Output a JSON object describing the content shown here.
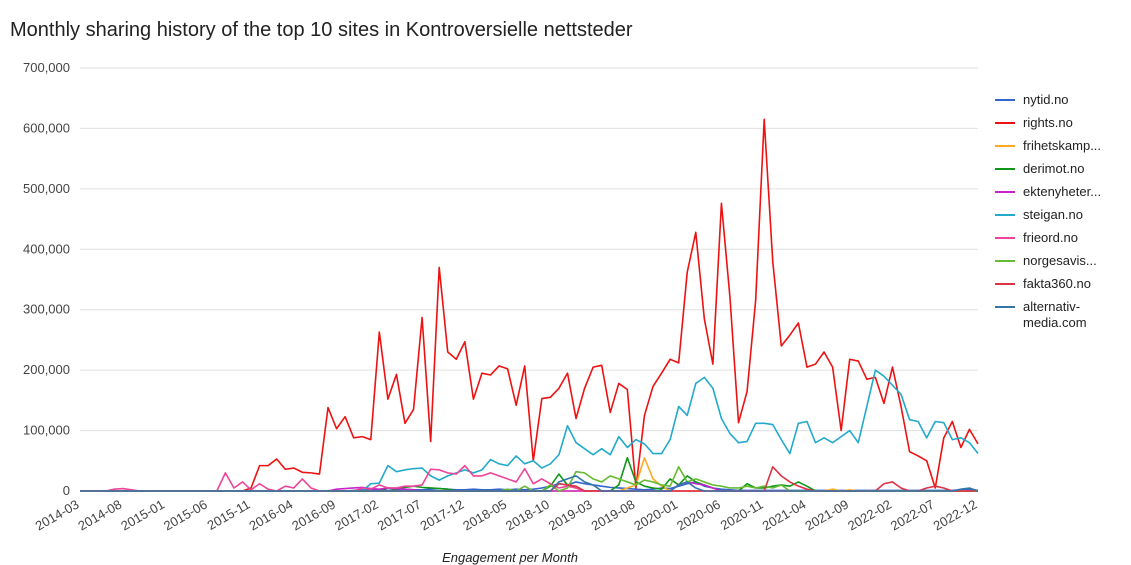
{
  "chart_data": {
    "type": "line",
    "title": "Monthly sharing history of the top 10 sites in Kontroversielle nettsteder",
    "x_label": "Engagement per Month",
    "categories": [
      "2014-03",
      null,
      null,
      null,
      null,
      "2014-08",
      null,
      null,
      null,
      null,
      "2015-01",
      null,
      null,
      null,
      null,
      "2015-06",
      null,
      null,
      null,
      null,
      "2015-11",
      null,
      null,
      null,
      null,
      "2016-04",
      null,
      null,
      null,
      null,
      "2016-09",
      null,
      null,
      null,
      null,
      "2017-02",
      null,
      null,
      null,
      null,
      "2017-07",
      null,
      null,
      null,
      null,
      "2017-12",
      null,
      null,
      null,
      null,
      "2018-05",
      null,
      null,
      null,
      null,
      "2018-10",
      null,
      null,
      null,
      null,
      "2019-03",
      null,
      null,
      null,
      null,
      "2019-08",
      null,
      null,
      null,
      null,
      "2020-01",
      null,
      null,
      null,
      null,
      "2020-06",
      null,
      null,
      null,
      null,
      "2020-11",
      null,
      null,
      null,
      null,
      "2021-04",
      null,
      null,
      null,
      null,
      "2021-09",
      null,
      null,
      null,
      null,
      "2022-02",
      null,
      null,
      null,
      null,
      "2022-07",
      null,
      null,
      null,
      null,
      "2022-12"
    ],
    "ylim": [
      0,
      700000
    ],
    "yticks": [
      0,
      {
        "value": 100000,
        "label": "100,000"
      },
      {
        "value": 200000,
        "label": "200,000"
      },
      {
        "value": 300000,
        "label": "300,000"
      },
      {
        "value": 400000,
        "label": "400,000"
      },
      {
        "value": 500000,
        "label": "500,000"
      },
      {
        "value": 600000,
        "label": "600,000"
      },
      {
        "value": 700000,
        "label": "700,000"
      }
    ],
    "grid": true,
    "legend": "right",
    "series": [
      {
        "name": "nytid.no",
        "color": "#3366cc",
        "values": [
          0,
          0,
          0,
          0,
          0,
          0,
          0,
          0,
          0,
          0,
          0,
          0,
          0,
          0,
          0,
          0,
          0,
          0,
          0,
          0,
          0,
          0,
          0,
          0,
          0,
          0,
          0,
          0,
          0,
          0,
          0,
          0,
          1000,
          2000,
          1000,
          2000,
          1000,
          2000,
          3000,
          2000,
          2000,
          3000,
          4000,
          3000,
          2000,
          2000,
          3000,
          2000,
          2000,
          3000,
          2000,
          3000,
          2000,
          3000,
          5000,
          8000,
          12000,
          10000,
          15000,
          12000,
          10000,
          8000,
          6000,
          5000,
          4000,
          3000,
          2000,
          3000,
          5000,
          4000,
          8000,
          12000,
          15000,
          8000,
          5000,
          3000,
          2000,
          1000,
          1000,
          1000,
          1000,
          1000,
          1000,
          1000,
          1000,
          1000,
          1000,
          1000,
          1000,
          1000,
          1000,
          1000,
          1000,
          1000,
          1000,
          1000,
          1000,
          1000,
          1000,
          1000,
          1000,
          1000,
          1000,
          2000,
          3000,
          1000
        ]
      },
      {
        "name": "rights.no",
        "color": "#ee1111",
        "values": [
          0,
          0,
          0,
          0,
          0,
          0,
          0,
          0,
          0,
          0,
          0,
          0,
          0,
          0,
          0,
          0,
          0,
          0,
          0,
          0,
          5000,
          42000,
          42000,
          53000,
          36000,
          38000,
          31000,
          30000,
          28000,
          138000,
          103000,
          123000,
          88000,
          90000,
          85000,
          263000,
          152000,
          193000,
          112000,
          135000,
          287000,
          82000,
          370000,
          230000,
          218000,
          247000,
          152000,
          195000,
          192000,
          207000,
          202000,
          142000,
          207000,
          50000,
          153000,
          155000,
          170000,
          195000,
          120000,
          170000,
          205000,
          208000,
          130000,
          178000,
          168000,
          5000,
          125000,
          173000,
          195000,
          218000,
          212000,
          362000,
          428000,
          285000,
          210000,
          476000,
          320000,
          113000,
          165000,
          315000,
          615000,
          380000,
          240000,
          258000,
          278000,
          205000,
          210000,
          230000,
          205000,
          100000,
          218000,
          215000,
          185000,
          188000,
          145000,
          205000,
          140000,
          65000,
          58000,
          50000,
          5000,
          88000,
          115000,
          72000,
          102000,
          78000
        ]
      },
      {
        "name": "frihetskamp...",
        "color": "#ffaa22",
        "values": [
          0,
          0,
          0,
          0,
          0,
          0,
          0,
          0,
          0,
          0,
          0,
          0,
          0,
          0,
          0,
          0,
          0,
          0,
          0,
          0,
          0,
          0,
          0,
          0,
          0,
          0,
          0,
          0,
          0,
          0,
          0,
          0,
          0,
          0,
          0,
          0,
          0,
          0,
          0,
          0,
          0,
          0,
          0,
          0,
          0,
          0,
          0,
          0,
          0,
          0,
          0,
          0,
          0,
          0,
          0,
          0,
          0,
          0,
          0,
          0,
          0,
          0,
          0,
          0,
          5000,
          10000,
          55000,
          20000,
          8000,
          0,
          0,
          0,
          0,
          0,
          0,
          0,
          0,
          0,
          0,
          0,
          0,
          0,
          0,
          0,
          0,
          0,
          0,
          0,
          3000,
          0,
          2000,
          0,
          0,
          0,
          0,
          0,
          0,
          0,
          0,
          0,
          0,
          0,
          0,
          0,
          0,
          0
        ]
      },
      {
        "name": "derimot.no",
        "color": "#109618",
        "values": [
          0,
          0,
          0,
          0,
          0,
          0,
          0,
          0,
          0,
          0,
          0,
          0,
          0,
          0,
          0,
          0,
          0,
          0,
          0,
          0,
          0,
          0,
          0,
          0,
          0,
          0,
          0,
          0,
          0,
          0,
          0,
          0,
          0,
          0,
          0,
          0,
          5000,
          3000,
          6000,
          8000,
          6000,
          5000,
          4000,
          3000,
          0,
          0,
          0,
          0,
          0,
          0,
          0,
          0,
          0,
          0,
          0,
          8000,
          28000,
          10000,
          5000,
          0,
          0,
          0,
          0,
          10000,
          55000,
          15000,
          8000,
          5000,
          3000,
          20000,
          10000,
          25000,
          15000,
          10000,
          5000,
          0,
          0,
          0,
          12000,
          5000,
          5000,
          8000,
          10000,
          8000,
          15000,
          8000,
          0,
          0,
          0,
          0,
          0,
          0,
          0,
          0,
          0,
          0,
          0,
          0,
          0,
          0,
          0,
          0,
          0,
          0,
          0,
          0
        ]
      },
      {
        "name": "ektenyheter...",
        "color": "#cc22cc",
        "values": [
          0,
          0,
          0,
          0,
          0,
          0,
          0,
          0,
          0,
          0,
          0,
          0,
          0,
          0,
          0,
          0,
          0,
          0,
          0,
          0,
          0,
          0,
          0,
          0,
          0,
          0,
          0,
          0,
          0,
          0,
          3000,
          4000,
          5000,
          6000,
          4000,
          3000,
          5000,
          4000,
          3000,
          2000,
          0,
          0,
          0,
          0,
          0,
          0,
          0,
          0,
          0,
          0,
          0,
          0,
          0,
          0,
          0,
          0,
          0,
          0,
          0,
          0,
          0,
          0,
          0,
          0,
          0,
          0,
          0,
          0,
          0,
          0,
          10000,
          15000,
          12000,
          10000,
          5000,
          0,
          0,
          0,
          0,
          0,
          0,
          0,
          0,
          0,
          0,
          0,
          0,
          0,
          0,
          0,
          0,
          0,
          0,
          0,
          0,
          0,
          0,
          0,
          0,
          0,
          0,
          0,
          0,
          0,
          0,
          0
        ]
      },
      {
        "name": "steigan.no",
        "color": "#22aacc",
        "values": [
          0,
          0,
          0,
          0,
          0,
          0,
          0,
          0,
          0,
          0,
          0,
          0,
          0,
          0,
          0,
          0,
          0,
          0,
          0,
          0,
          0,
          0,
          0,
          0,
          0,
          0,
          0,
          0,
          0,
          0,
          0,
          0,
          0,
          0,
          12000,
          13000,
          42000,
          32000,
          35000,
          37000,
          38000,
          25000,
          18000,
          25000,
          30000,
          35000,
          30000,
          35000,
          52000,
          45000,
          42000,
          58000,
          45000,
          50000,
          38000,
          45000,
          60000,
          108000,
          80000,
          70000,
          60000,
          70000,
          60000,
          90000,
          72000,
          85000,
          78000,
          62000,
          62000,
          85000,
          140000,
          125000,
          178000,
          188000,
          170000,
          120000,
          95000,
          80000,
          82000,
          112000,
          112000,
          110000,
          85000,
          62000,
          112000,
          115000,
          80000,
          88000,
          80000,
          90000,
          100000,
          80000,
          140000,
          200000,
          190000,
          175000,
          160000,
          118000,
          115000,
          88000,
          115000,
          113000,
          85000,
          88000,
          80000,
          62000
        ]
      },
      {
        "name": "frieord.no",
        "color": "#ee4499",
        "values": [
          0,
          0,
          0,
          0,
          3000,
          4000,
          2000,
          0,
          0,
          0,
          0,
          0,
          0,
          0,
          0,
          0,
          0,
          30000,
          5000,
          15000,
          2000,
          12000,
          3000,
          0,
          8000,
          5000,
          20000,
          5000,
          0,
          0,
          0,
          0,
          0,
          5000,
          3000,
          10000,
          5000,
          5000,
          8000,
          8000,
          10000,
          36000,
          35000,
          30000,
          28000,
          42000,
          25000,
          25000,
          30000,
          25000,
          20000,
          15000,
          37000,
          12000,
          20000,
          12000,
          5000,
          8000,
          5000,
          0,
          0,
          0,
          0,
          0,
          0,
          0,
          0,
          0,
          0,
          0,
          0,
          0,
          0,
          0,
          0,
          0,
          0,
          0,
          0,
          0,
          0,
          0,
          0,
          0,
          0,
          0,
          0,
          0,
          0,
          0,
          0,
          0,
          0,
          0,
          0,
          0,
          0,
          0,
          0,
          0,
          0,
          0,
          0,
          0,
          0,
          0
        ]
      },
      {
        "name": "norgesavis...",
        "color": "#66bb33",
        "values": [
          0,
          0,
          0,
          0,
          0,
          0,
          0,
          0,
          0,
          0,
          0,
          0,
          0,
          0,
          0,
          0,
          0,
          0,
          0,
          0,
          0,
          0,
          0,
          0,
          0,
          0,
          0,
          0,
          0,
          0,
          0,
          0,
          0,
          0,
          0,
          0,
          0,
          0,
          0,
          0,
          0,
          0,
          0,
          0,
          0,
          0,
          0,
          0,
          0,
          0,
          3000,
          0,
          8000,
          0,
          0,
          10000,
          0,
          5000,
          32000,
          30000,
          20000,
          15000,
          25000,
          20000,
          15000,
          10000,
          18000,
          15000,
          10000,
          8000,
          40000,
          15000,
          20000,
          15000,
          10000,
          8000,
          5000,
          5000,
          8000,
          5000,
          8000,
          5000,
          10000,
          0,
          0,
          0,
          0,
          0,
          0,
          0,
          0,
          0,
          0,
          0,
          0,
          0,
          0,
          0,
          0,
          0,
          0,
          0,
          0,
          0,
          0,
          0
        ]
      },
      {
        "name": "fakta360.no",
        "color": "#dd3344",
        "values": [
          0,
          0,
          0,
          0,
          0,
          0,
          0,
          0,
          0,
          0,
          0,
          0,
          0,
          0,
          0,
          0,
          0,
          0,
          0,
          0,
          0,
          0,
          0,
          0,
          0,
          0,
          0,
          0,
          0,
          0,
          0,
          0,
          0,
          0,
          0,
          0,
          0,
          0,
          0,
          0,
          0,
          0,
          0,
          0,
          0,
          0,
          0,
          0,
          0,
          0,
          0,
          0,
          0,
          0,
          0,
          0,
          12000,
          10000,
          8000,
          0,
          0,
          0,
          0,
          0,
          0,
          0,
          0,
          0,
          0,
          0,
          0,
          0,
          0,
          0,
          0,
          0,
          0,
          0,
          0,
          0,
          0,
          40000,
          25000,
          15000,
          8000,
          3000,
          0,
          0,
          0,
          0,
          0,
          0,
          0,
          0,
          12000,
          15000,
          5000,
          0,
          0,
          5000,
          8000,
          5000,
          0,
          0,
          0,
          0
        ]
      },
      {
        "name": "alternativ-media.com",
        "color": "#3377aa",
        "values": [
          0,
          0,
          0,
          0,
          0,
          0,
          0,
          0,
          0,
          0,
          0,
          0,
          0,
          0,
          0,
          0,
          0,
          0,
          0,
          0,
          0,
          0,
          0,
          0,
          0,
          0,
          0,
          0,
          0,
          0,
          0,
          0,
          0,
          0,
          0,
          0,
          0,
          0,
          0,
          0,
          0,
          0,
          0,
          0,
          0,
          0,
          0,
          0,
          0,
          0,
          0,
          0,
          0,
          0,
          0,
          0,
          15000,
          20000,
          25000,
          15000,
          10000,
          0,
          0,
          0,
          0,
          0,
          0,
          0,
          0,
          0,
          10000,
          15000,
          5000,
          0,
          0,
          0,
          0,
          0,
          0,
          0,
          0,
          0,
          0,
          0,
          0,
          0,
          0,
          0,
          0,
          0,
          0,
          0,
          0,
          0,
          0,
          0,
          0,
          0,
          0,
          0,
          0,
          0,
          0,
          3000,
          5000,
          0
        ]
      }
    ]
  }
}
